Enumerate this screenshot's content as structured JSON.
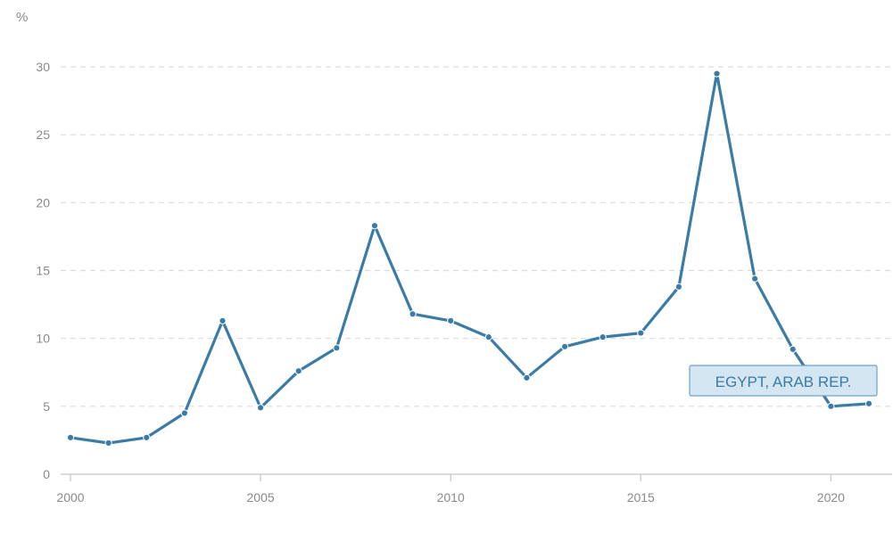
{
  "chart_data": {
    "type": "line",
    "unit_label": "%",
    "x": [
      2000,
      2001,
      2002,
      2003,
      2004,
      2005,
      2006,
      2007,
      2008,
      2009,
      2010,
      2011,
      2012,
      2013,
      2014,
      2015,
      2016,
      2017,
      2018,
      2019,
      2020,
      2021
    ],
    "series": [
      {
        "name": "EGYPT, ARAB REP.",
        "values": [
          2.7,
          2.3,
          2.7,
          4.5,
          11.3,
          4.9,
          7.6,
          9.3,
          18.3,
          11.8,
          11.3,
          10.1,
          7.1,
          9.4,
          10.1,
          10.4,
          13.8,
          29.5,
          14.4,
          9.2,
          5.0,
          5.2
        ]
      }
    ],
    "x_ticks": [
      "2000",
      "2005",
      "2010",
      "2015",
      "2020"
    ],
    "y_ticks": [
      "0",
      "5",
      "10",
      "15",
      "20",
      "25",
      "30"
    ],
    "ylim": [
      0,
      30
    ],
    "xlim": [
      2000,
      2021
    ],
    "grid": true,
    "legend_placement": "right, label near line end",
    "colors": {
      "line": "#3a7ca5",
      "label_fill": "#d5e6f3",
      "label_border": "#6aa3c9",
      "label_text": "#3a7ca5"
    }
  }
}
